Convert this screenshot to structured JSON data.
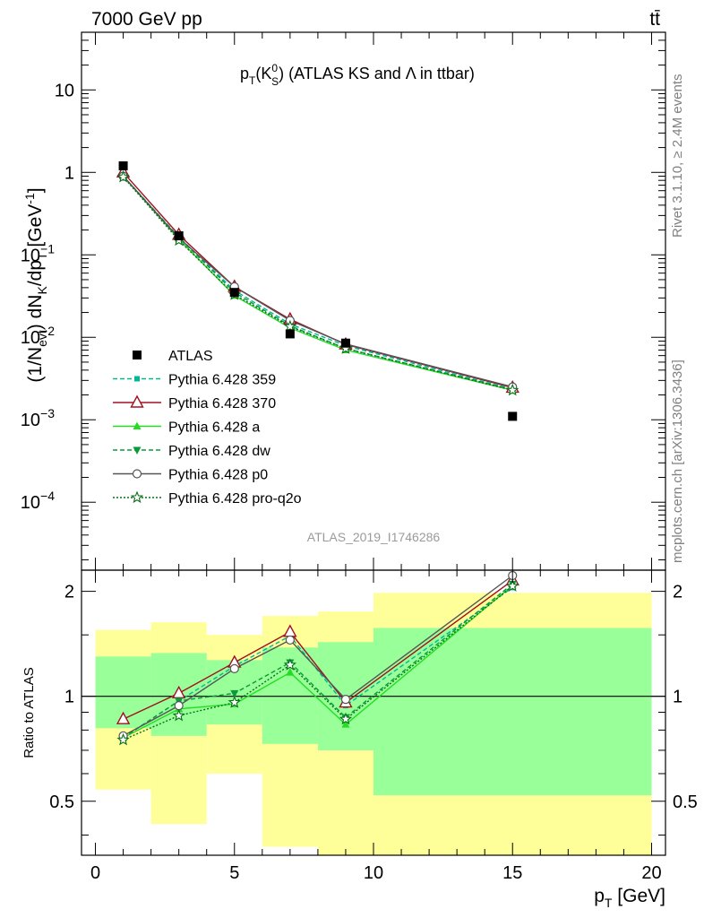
{
  "header": {
    "left": "7000 GeV pp",
    "right": "tt̄"
  },
  "side_labels": {
    "rivet": "Rivet 3.1.10, ≥ 2.4M events",
    "mcplots": "mcplots.cern.ch [arXiv:1306.3436]"
  },
  "colors": {
    "data": "#000000",
    "p359": "#00b894",
    "p370": "#a01020",
    "pa": "#22dd22",
    "pdw": "#0a9a3a",
    "pp0": "#555555",
    "pq2o": "#0b6e1a",
    "band_inner": "#99ff99",
    "band_outer": "#ffff99"
  },
  "chart_data": [
    {
      "type": "line",
      "title": "p_T(K⁰_S) (ATLAS KS and Λ in ttbar)",
      "title_parts": {
        "p": "p",
        "T": "T",
        "K": "K",
        "zero": "0",
        "S": "S",
        "rest": ") (ATLAS KS and Λ in ttbar)"
      },
      "watermark": "ATLAS_2019_I1746286",
      "ylabel": "(1/N_evt) dN_K/dp_T [GeV⁻¹]",
      "ylabel_parts": {
        "a": "(1/N",
        "evt": "evt",
        "b": ") dN",
        "K": "K",
        "c": "/dp",
        "T": "T",
        "d": " [GeV",
        "m1": "-1",
        "e": "]"
      },
      "yscale": "log",
      "ylim": [
        1.5e-05,
        50
      ],
      "xlim": [
        -0.5,
        20.5
      ],
      "yticks": [
        {
          "v": 10,
          "base": "10",
          "exp": ""
        },
        {
          "v": 1,
          "base": "1",
          "exp": ""
        },
        {
          "v": 0.1,
          "base": "10",
          "exp": "−1"
        },
        {
          "v": 0.01,
          "base": "10",
          "exp": "−2"
        },
        {
          "v": 0.001,
          "base": "10",
          "exp": "−3"
        },
        {
          "v": 0.0001,
          "base": "10",
          "exp": "−4"
        }
      ],
      "legend": "left",
      "x": [
        1,
        3,
        5,
        7,
        9,
        15
      ],
      "series": [
        {
          "name": "ATLAS",
          "key": "data",
          "marker": "square",
          "values": [
            1.2,
            0.17,
            0.035,
            0.011,
            0.0085,
            0.0011
          ]
        },
        {
          "name": "Pythia 6.428 359",
          "key": "p359",
          "marker": "smallsquare",
          "dash": "5,3",
          "values": [
            0.9,
            0.165,
            0.037,
            0.0145,
            0.0079,
            0.00235
          ]
        },
        {
          "name": "Pythia 6.428 370",
          "key": "p370",
          "marker": "triangle-open",
          "dash": "",
          "values": [
            1.0,
            0.175,
            0.041,
            0.0165,
            0.0082,
            0.00245
          ]
        },
        {
          "name": "Pythia 6.428 a",
          "key": "pa",
          "marker": "triangle",
          "dash": "",
          "values": [
            0.9,
            0.155,
            0.032,
            0.013,
            0.007,
            0.00228
          ]
        },
        {
          "name": "Pythia 6.428 dw",
          "key": "pdw",
          "marker": "triangle-down",
          "dash": "5,3",
          "values": [
            0.9,
            0.162,
            0.035,
            0.0138,
            0.0073,
            0.00232
          ]
        },
        {
          "name": "Pythia 6.428 p0",
          "key": "pp0",
          "marker": "circle-open",
          "dash": "",
          "values": [
            0.9,
            0.16,
            0.041,
            0.016,
            0.0083,
            0.0025
          ]
        },
        {
          "name": "Pythia 6.428 pro-q2o",
          "key": "pq2o",
          "marker": "star",
          "dash": "2,2",
          "values": [
            0.88,
            0.15,
            0.033,
            0.0135,
            0.0073,
            0.00228
          ]
        }
      ]
    },
    {
      "type": "line",
      "ylabel": "Ratio to ATLAS",
      "xlabel": "p_T [GeV]",
      "xlabel_parts": {
        "p": "p",
        "T": "T",
        "unit": " [GeV]"
      },
      "yscale": "log",
      "ylim": [
        0.35,
        2.3
      ],
      "xlim": [
        -0.5,
        20.5
      ],
      "xticks": [
        0,
        5,
        10,
        15,
        20
      ],
      "yticks": [
        0.5,
        1,
        2
      ],
      "reference_line": 1,
      "bins": [
        {
          "lo": 0,
          "hi": 2,
          "inner": [
            0.81,
            1.3
          ],
          "outer": [
            0.54,
            1.55
          ]
        },
        {
          "lo": 2,
          "hi": 4,
          "inner": [
            0.77,
            1.33
          ],
          "outer": [
            0.43,
            1.63
          ]
        },
        {
          "lo": 4,
          "hi": 6,
          "inner": [
            0.83,
            1.27
          ],
          "outer": [
            0.6,
            1.5
          ]
        },
        {
          "lo": 6,
          "hi": 8,
          "inner": [
            0.73,
            1.38
          ],
          "outer": [
            0.37,
            1.7
          ]
        },
        {
          "lo": 8,
          "hi": 10,
          "inner": [
            0.7,
            1.43
          ],
          "outer": [
            0.35,
            1.75
          ]
        },
        {
          "lo": 10,
          "hi": 20,
          "inner": [
            0.52,
            1.57
          ],
          "outer": [
            0.35,
            1.98
          ]
        }
      ],
      "x": [
        1,
        3,
        5,
        7,
        9,
        15
      ],
      "series": [
        {
          "key": "p359",
          "marker": "smallsquare",
          "dash": "5,3",
          "values": [
            0.76,
            0.97,
            1.22,
            1.49,
            0.94,
            2.05
          ]
        },
        {
          "key": "p370",
          "marker": "triangle-open",
          "dash": "",
          "values": [
            0.86,
            1.02,
            1.25,
            1.53,
            0.96,
            2.15
          ]
        },
        {
          "key": "pa",
          "marker": "triangle",
          "dash": "",
          "values": [
            0.76,
            0.92,
            0.95,
            1.17,
            0.83,
            2.08
          ]
        },
        {
          "key": "pdw",
          "marker": "triangle-down",
          "dash": "5,3",
          "values": [
            0.76,
            0.97,
            1.02,
            1.25,
            0.87,
            2.1
          ]
        },
        {
          "key": "pp0",
          "marker": "circle-open",
          "dash": "",
          "values": [
            0.77,
            0.94,
            1.2,
            1.45,
            0.98,
            2.22
          ]
        },
        {
          "key": "pq2o",
          "marker": "star",
          "dash": "2,2",
          "values": [
            0.75,
            0.88,
            0.96,
            1.23,
            0.86,
            2.07
          ]
        }
      ]
    }
  ]
}
